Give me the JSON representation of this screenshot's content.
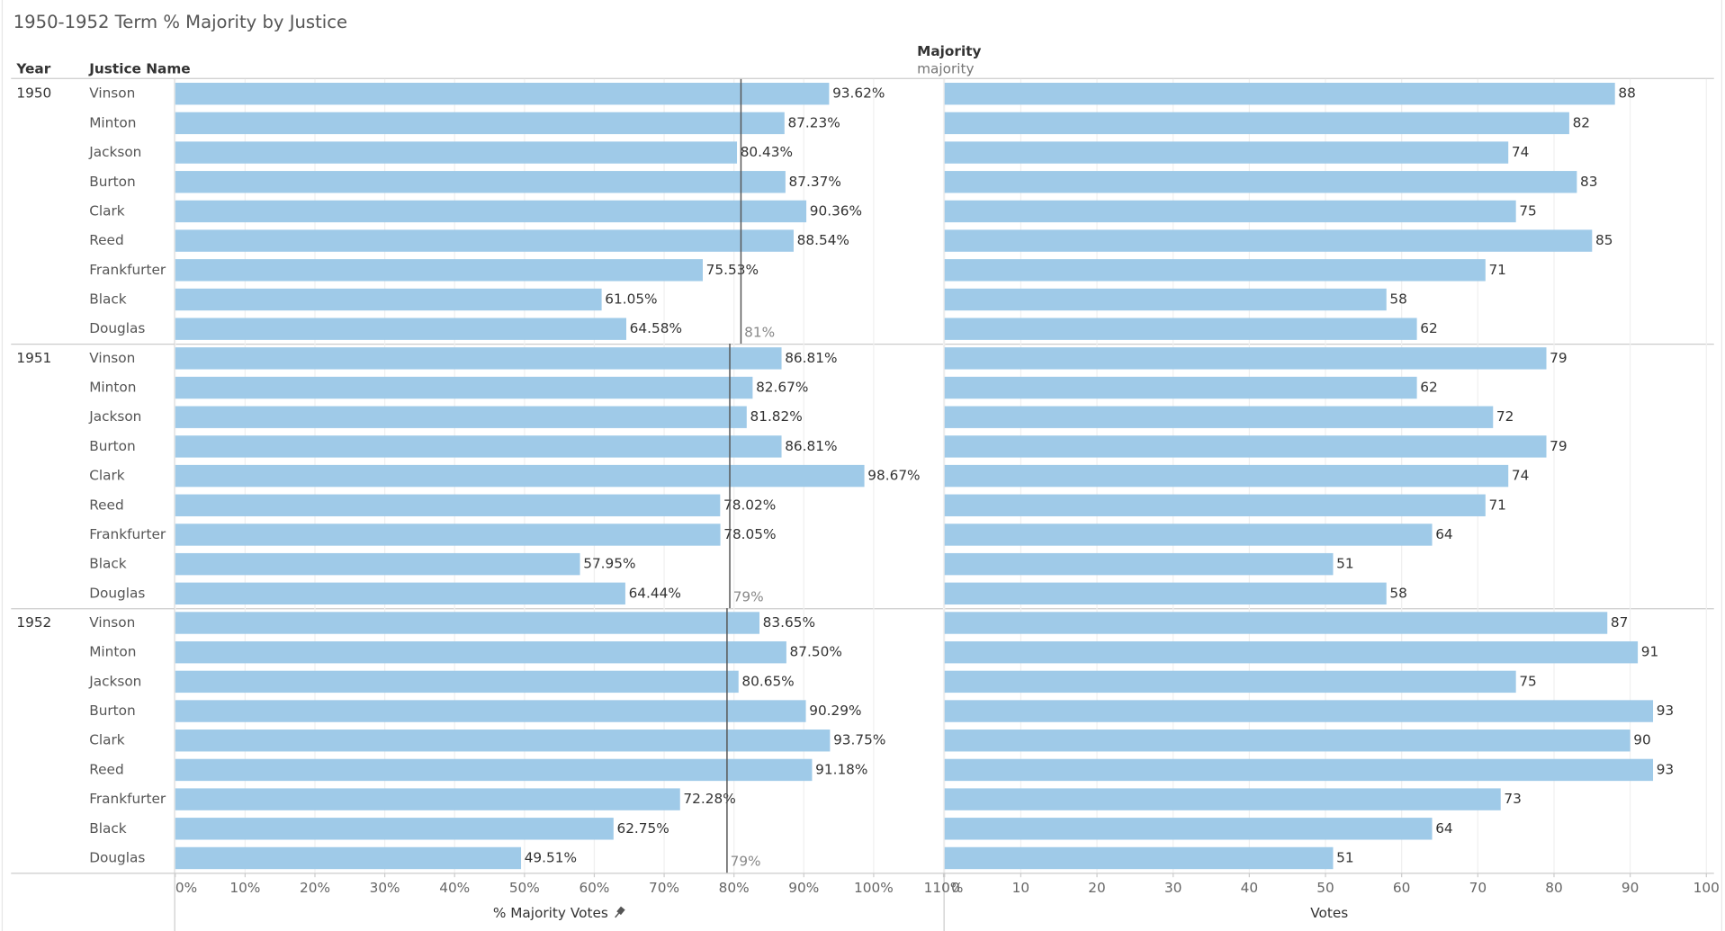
{
  "chart_data": {
    "type": "bar",
    "title": "1950-1952 Term % Majority by Justice",
    "column_headers": [
      "Year",
      "Justice Name"
    ],
    "column_group": {
      "title": "Majority",
      "subtitle": "majority"
    },
    "years": [
      "1950",
      "1951",
      "1952"
    ],
    "categories": [
      "Vinson",
      "Minton",
      "Jackson",
      "Burton",
      "Clark",
      "Reed",
      "Frankfurter",
      "Black",
      "Douglas"
    ],
    "grid": true,
    "panels": [
      {
        "axis_label": "% Majority Votes",
        "color": "#9fcae8",
        "xlim": [
          0,
          110
        ],
        "xticks": [
          {
            "value": 0,
            "label": "0%"
          },
          {
            "value": 10,
            "label": "10%"
          },
          {
            "value": 20,
            "label": "20%"
          },
          {
            "value": 30,
            "label": "30%"
          },
          {
            "value": 40,
            "label": "40%"
          },
          {
            "value": 50,
            "label": "50%"
          },
          {
            "value": 60,
            "label": "60%"
          },
          {
            "value": 70,
            "label": "70%"
          },
          {
            "value": 80,
            "label": "80%"
          },
          {
            "value": 90,
            "label": "90%"
          },
          {
            "value": 100,
            "label": "100%"
          },
          {
            "value": 110,
            "label": "110%"
          }
        ],
        "values": [
          [
            93.62,
            87.23,
            80.43,
            87.37,
            90.36,
            88.54,
            75.53,
            61.05,
            64.58
          ],
          [
            86.81,
            82.67,
            81.82,
            86.81,
            98.67,
            78.02,
            78.05,
            57.95,
            64.44
          ],
          [
            83.65,
            87.5,
            80.65,
            90.29,
            93.75,
            91.18,
            72.28,
            62.75,
            49.51
          ]
        ],
        "value_labels": [
          [
            "93.62%",
            "87.23%",
            "80.43%",
            "87.37%",
            "90.36%",
            "88.54%",
            "75.53%",
            "61.05%",
            "64.58%"
          ],
          [
            "86.81%",
            "82.67%",
            "81.82%",
            "86.81%",
            "98.67%",
            "78.02%",
            "78.05%",
            "57.95%",
            "64.44%"
          ],
          [
            "83.65%",
            "87.50%",
            "80.65%",
            "90.29%",
            "93.75%",
            "91.18%",
            "72.28%",
            "62.75%",
            "49.51%"
          ]
        ],
        "reference_lines": [
          {
            "value": 81,
            "label": "81%"
          },
          {
            "value": 79.4,
            "label": "79%"
          },
          {
            "value": 79,
            "label": "79%"
          }
        ]
      },
      {
        "axis_label": "Votes",
        "color": "#9fcae8",
        "xlim": [
          0,
          101
        ],
        "xticks": [
          0,
          10,
          20,
          30,
          40,
          50,
          60,
          70,
          80,
          90,
          100
        ],
        "values": [
          [
            88,
            82,
            74,
            83,
            75,
            85,
            71,
            58,
            62
          ],
          [
            79,
            62,
            72,
            79,
            74,
            71,
            64,
            51,
            58
          ],
          [
            87,
            91,
            75,
            93,
            90,
            93,
            73,
            64,
            51
          ]
        ]
      }
    ]
  }
}
